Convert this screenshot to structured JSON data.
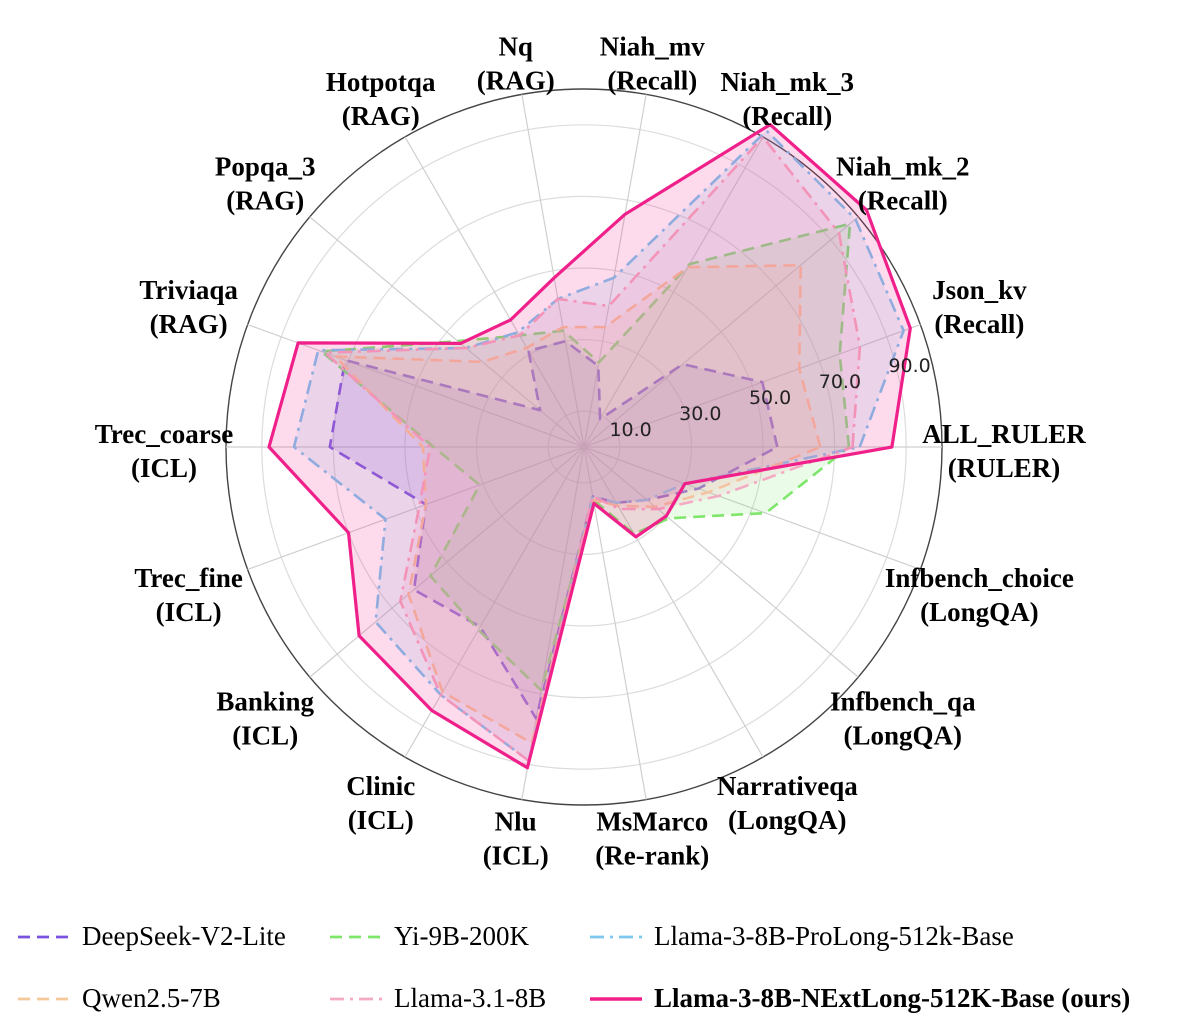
{
  "chart_data": {
    "type": "radar",
    "title": "",
    "rlim": [
      0,
      100
    ],
    "r_ticks": [
      10,
      30,
      50,
      70,
      90
    ],
    "r_tick_labels": [
      "10.0",
      "30.0",
      "50.0",
      "70.0",
      "90.0"
    ],
    "axes": [
      {
        "name": "ALL_RULER",
        "group": "(RULER)"
      },
      {
        "name": "Json_kv",
        "group": "(Recall)"
      },
      {
        "name": "Niah_mk_2",
        "group": "(Recall)"
      },
      {
        "name": "Niah_mk_3",
        "group": "(Recall)"
      },
      {
        "name": "Niah_mv",
        "group": "(Recall)"
      },
      {
        "name": "Nq",
        "group": "(RAG)"
      },
      {
        "name": "Hotpotqa",
        "group": "(RAG)"
      },
      {
        "name": "Popqa_3",
        "group": "(RAG)"
      },
      {
        "name": "Triviaqa",
        "group": "(RAG)"
      },
      {
        "name": "Trec_coarse",
        "group": "(ICL)"
      },
      {
        "name": "Trec_fine",
        "group": "(ICL)"
      },
      {
        "name": "Banking",
        "group": "(ICL)"
      },
      {
        "name": "Clinic",
        "group": "(ICL)"
      },
      {
        "name": "Nlu",
        "group": "(ICL)"
      },
      {
        "name": "MsMarco",
        "group": "(Re-rank)"
      },
      {
        "name": "Narrativeqa",
        "group": "(LongQA)"
      },
      {
        "name": "Infbench_qa",
        "group": "(LongQA)"
      },
      {
        "name": "Infbench_choice",
        "group": "(LongQA)"
      }
    ],
    "series": [
      {
        "name": "DeepSeek-V2-Lite",
        "color": "#7b52e0",
        "style": "dashed",
        "values": [
          54,
          53,
          36,
          9,
          23,
          30,
          31,
          16,
          71,
          71,
          47,
          62,
          58,
          77,
          14,
          18,
          23,
          34
        ]
      },
      {
        "name": "Yi-9B-200K",
        "color": "#7ee66a",
        "style": "dashed",
        "values": [
          74,
          76,
          97,
          59,
          24,
          33,
          36,
          46,
          78,
          42,
          31,
          56,
          59,
          69,
          15,
          28,
          31,
          54
        ]
      },
      {
        "name": "Llama-3-8B-ProLong-512k-Base",
        "color": "#7ec8f0",
        "style": "dashdot",
        "values": [
          77,
          95,
          99,
          102,
          48,
          42,
          37,
          43,
          79,
          81,
          59,
          76,
          80,
          89,
          14,
          18,
          23,
          30
        ]
      },
      {
        "name": "Qwen2.5-7B",
        "color": "#f5c89a",
        "style": "dashed",
        "values": [
          66,
          64,
          79,
          58,
          34,
          34,
          32,
          37,
          74,
          45,
          47,
          64,
          79,
          84,
          15,
          19,
          26,
          37
        ]
      },
      {
        "name": "Llama-3.1-8B",
        "color": "#f4aac2",
        "style": "dashdot",
        "values": [
          75,
          82,
          93,
          100,
          40,
          42,
          36,
          43,
          77,
          43,
          49,
          67,
          80,
          89,
          14,
          20,
          27,
          40
        ]
      },
      {
        "name": "Llama-3-8B-NExtLong-512K-Base (ours)",
        "color": "#f0208a",
        "style": "solid",
        "values": [
          86,
          97,
          103,
          104,
          66,
          48,
          41,
          45,
          85,
          88,
          70,
          82,
          85,
          91,
          16,
          29,
          30,
          30
        ]
      }
    ],
    "legend_position": "bottom"
  }
}
